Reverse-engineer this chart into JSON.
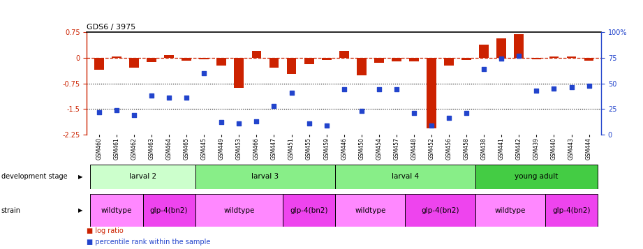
{
  "title": "GDS6 / 3975",
  "samples": [
    "GSM460",
    "GSM461",
    "GSM462",
    "GSM463",
    "GSM464",
    "GSM465",
    "GSM445",
    "GSM449",
    "GSM453",
    "GSM466",
    "GSM447",
    "GSM451",
    "GSM455",
    "GSM459",
    "GSM446",
    "GSM450",
    "GSM454",
    "GSM457",
    "GSM448",
    "GSM452",
    "GSM456",
    "GSM458",
    "GSM438",
    "GSM441",
    "GSM442",
    "GSM439",
    "GSM440",
    "GSM443",
    "GSM444"
  ],
  "log_ratio": [
    -0.35,
    0.05,
    -0.28,
    -0.12,
    0.08,
    -0.08,
    -0.04,
    -0.22,
    -0.88,
    0.2,
    -0.28,
    -0.48,
    -0.18,
    -0.06,
    0.2,
    -0.52,
    -0.15,
    -0.1,
    -0.1,
    -2.08,
    -0.22,
    -0.06,
    0.38,
    0.58,
    0.7,
    -0.04,
    0.04,
    0.04,
    -0.08
  ],
  "percentile": [
    22,
    24,
    19,
    38,
    36,
    36,
    60,
    12,
    11,
    13,
    28,
    41,
    11,
    9,
    44,
    23,
    44,
    44,
    21,
    9,
    16,
    21,
    64,
    74,
    77,
    43,
    45,
    46,
    48
  ],
  "ylim_left": [
    -2.25,
    0.75
  ],
  "ylim_right": [
    0,
    100
  ],
  "yticks_left": [
    -2.25,
    -1.5,
    -0.75,
    0.0,
    0.75
  ],
  "ytick_labels_left": [
    "-2.25",
    "-1.5",
    "-0.75",
    "0",
    "0.75"
  ],
  "yticks_right": [
    0,
    25,
    50,
    75,
    100
  ],
  "ytick_labels_right": [
    "0",
    "25",
    "50",
    "75",
    "100%"
  ],
  "hlines_dotted": [
    -0.75,
    -1.5
  ],
  "bar_color": "#CC2200",
  "dot_color": "#2244CC",
  "dashed_line_color": "#CC2200",
  "dev_stages": [
    {
      "label": "larval 2",
      "start": 0,
      "end": 5,
      "color": "#CCFFCC"
    },
    {
      "label": "larval 3",
      "start": 6,
      "end": 13,
      "color": "#88EE88"
    },
    {
      "label": "larval 4",
      "start": 14,
      "end": 21,
      "color": "#88EE88"
    },
    {
      "label": "young adult",
      "start": 22,
      "end": 28,
      "color": "#44CC44"
    }
  ],
  "strains": [
    {
      "label": "wildtype",
      "start": 0,
      "end": 2,
      "color": "#FF88FF"
    },
    {
      "label": "glp-4(bn2)",
      "start": 3,
      "end": 5,
      "color": "#EE44EE"
    },
    {
      "label": "wildtype",
      "start": 6,
      "end": 10,
      "color": "#FF88FF"
    },
    {
      "label": "glp-4(bn2)",
      "start": 11,
      "end": 13,
      "color": "#EE44EE"
    },
    {
      "label": "wildtype",
      "start": 14,
      "end": 17,
      "color": "#FF88FF"
    },
    {
      "label": "glp-4(bn2)",
      "start": 18,
      "end": 21,
      "color": "#EE44EE"
    },
    {
      "label": "wildtype",
      "start": 22,
      "end": 25,
      "color": "#FF88FF"
    },
    {
      "label": "glp-4(bn2)",
      "start": 26,
      "end": 28,
      "color": "#EE44EE"
    }
  ]
}
